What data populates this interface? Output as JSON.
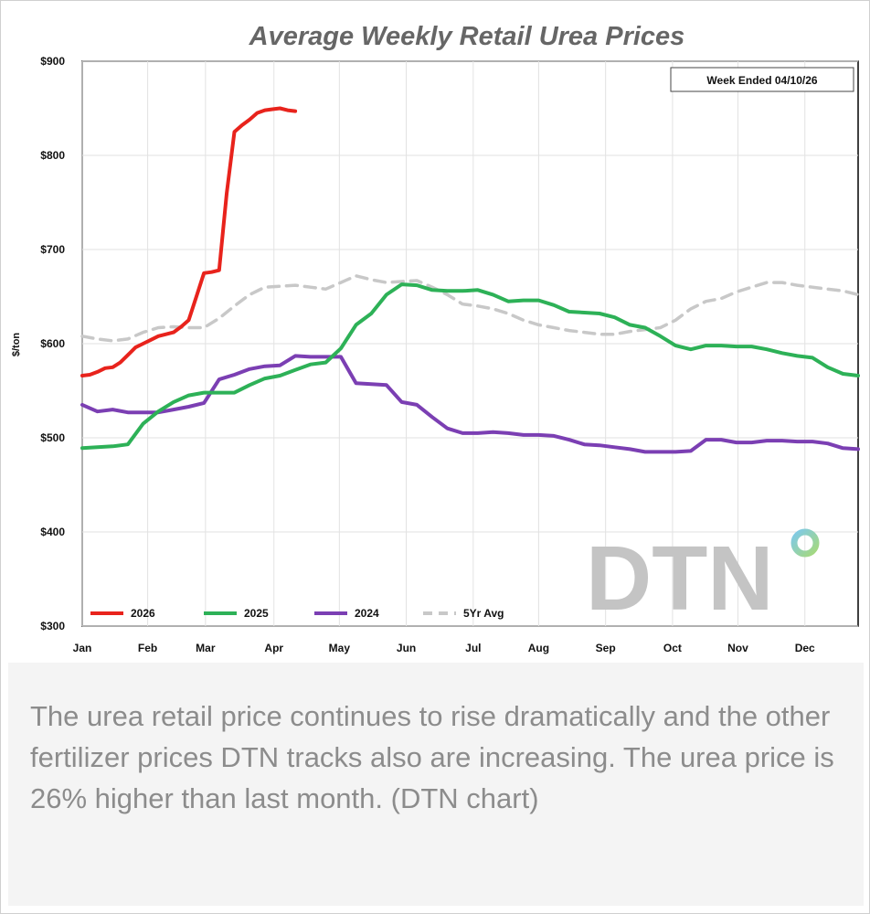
{
  "chart_data": {
    "type": "line",
    "title": "Average Weekly Retail Urea Prices",
    "subtitle": "Week Ended 04/10/26",
    "xlabel": "",
    "ylabel": "$/ton",
    "ylim": [
      300,
      900
    ],
    "yticks": [
      300,
      400,
      500,
      600,
      700,
      800,
      900
    ],
    "ytick_labels": [
      "$300",
      "$400",
      "$500",
      "$600",
      "$700",
      "$800",
      "$900"
    ],
    "xlim": [
      1,
      52
    ],
    "categories": [
      "Jan",
      "Feb",
      "Mar",
      "Apr",
      "May",
      "Jun",
      "Jul",
      "Aug",
      "Sep",
      "Oct",
      "Nov",
      "Dec"
    ],
    "category_weeks": [
      1,
      5.3,
      9.1,
      13.6,
      17.9,
      22.3,
      26.7,
      31,
      35.4,
      39.8,
      44.1,
      48.5
    ],
    "grid": true,
    "legend_position": "bottom-left",
    "series": [
      {
        "name": "2026",
        "color": "#e8231c",
        "dashed": false,
        "x": [
          1,
          1.5,
          2,
          2.5,
          3,
          3.5,
          4,
          4.5,
          5,
          5.5,
          6,
          6.5,
          7,
          7.5,
          8,
          8.5,
          9,
          9.5,
          10,
          10.5,
          11,
          11.5,
          12,
          12.5,
          13,
          13.5,
          14,
          14.5,
          15
        ],
        "y": [
          566,
          567,
          570,
          574,
          575,
          580,
          588,
          596,
          600,
          604,
          608,
          610,
          612,
          618,
          625,
          650,
          675,
          676,
          678,
          760,
          825,
          832,
          838,
          845,
          848,
          849,
          850,
          848,
          847
        ]
      },
      {
        "name": "2025",
        "color": "#2db157",
        "dashed": false,
        "x": [
          1,
          2,
          3,
          4,
          5,
          6,
          7,
          8,
          9,
          10,
          11,
          12,
          13,
          14,
          15,
          16,
          17,
          18,
          19,
          20,
          21,
          22,
          23,
          24,
          25,
          26,
          27,
          28,
          29,
          30,
          31,
          32,
          33,
          34,
          35,
          36,
          37,
          38,
          39,
          40,
          41,
          42,
          43,
          44,
          45,
          46,
          47,
          48,
          49,
          50,
          51,
          52
        ],
        "y": [
          489,
          490,
          491,
          493,
          515,
          528,
          538,
          545,
          548,
          548,
          548,
          556,
          563,
          566,
          572,
          578,
          580,
          595,
          620,
          632,
          652,
          663,
          662,
          657,
          656,
          656,
          657,
          652,
          645,
          646,
          646,
          641,
          634,
          633,
          632,
          628,
          620,
          617,
          608,
          598,
          594,
          598,
          598,
          597,
          597,
          594,
          590,
          587,
          585,
          575,
          568,
          566
        ]
      },
      {
        "name": "2024",
        "color": "#7b3fb3",
        "dashed": false,
        "x": [
          1,
          2,
          3,
          4,
          5,
          6,
          7,
          8,
          9,
          10,
          11,
          12,
          13,
          14,
          15,
          16,
          17,
          18,
          19,
          20,
          21,
          22,
          23,
          24,
          25,
          26,
          27,
          28,
          29,
          30,
          31,
          32,
          33,
          34,
          35,
          36,
          37,
          38,
          39,
          40,
          41,
          42,
          43,
          44,
          45,
          46,
          47,
          48,
          49,
          50,
          51,
          52
        ],
        "y": [
          535,
          528,
          530,
          527,
          527,
          527,
          530,
          533,
          537,
          562,
          567,
          573,
          576,
          577,
          587,
          586,
          586,
          586,
          558,
          557,
          556,
          538,
          535,
          522,
          510,
          505,
          505,
          506,
          505,
          503,
          503,
          502,
          498,
          493,
          492,
          490,
          488,
          485,
          485,
          485,
          486,
          498,
          498,
          495,
          495,
          497,
          497,
          496,
          496,
          494,
          489,
          488
        ]
      },
      {
        "name": "5Yr Avg",
        "color": "#c8c8c8",
        "dashed": true,
        "x": [
          1,
          2,
          3,
          4,
          5,
          6,
          7,
          8,
          9,
          10,
          11,
          12,
          13,
          14,
          15,
          16,
          17,
          18,
          19,
          20,
          21,
          22,
          23,
          24,
          25,
          26,
          27,
          28,
          29,
          30,
          31,
          32,
          33,
          34,
          35,
          36,
          37,
          38,
          39,
          40,
          41,
          42,
          43,
          44,
          45,
          46,
          47,
          48,
          49,
          50,
          51,
          52
        ],
        "y": [
          608,
          605,
          603,
          605,
          612,
          617,
          618,
          617,
          617,
          627,
          640,
          652,
          660,
          661,
          662,
          660,
          658,
          665,
          672,
          668,
          665,
          666,
          667,
          660,
          652,
          642,
          640,
          637,
          632,
          625,
          620,
          617,
          614,
          612,
          610,
          610,
          613,
          615,
          617,
          625,
          637,
          645,
          648,
          655,
          660,
          665,
          665,
          662,
          660,
          658,
          656,
          652
        ]
      }
    ],
    "legend_order": [
      "2026",
      "2025",
      "2024",
      "5Yr Avg"
    ]
  },
  "logo": {
    "text": "DTN",
    "accent": "#6ec6e8",
    "accent2": "#9fd76a"
  },
  "caption": "The urea retail price continues to rise dramatically and the other fertilizer prices DTN tracks also are increasing. The urea price is 26% higher than last month. (DTN chart)"
}
